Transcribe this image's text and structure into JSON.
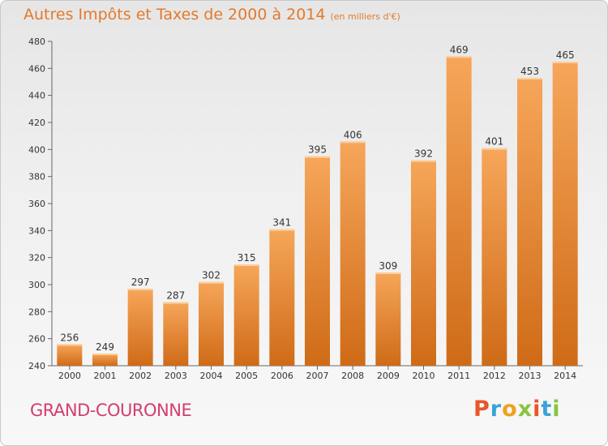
{
  "header": {
    "title": "Autres Impôts et Taxes de 2000 à 2014",
    "unit": "(en milliers d'€)"
  },
  "commune": "GRAND-COURONNE",
  "logo": {
    "text": "Proxiti",
    "letter_colors": [
      "#e8562a",
      "#3aa3d8",
      "#f0a11c",
      "#8ac43f",
      "#e8562a",
      "#3aa3d8",
      "#8ac43f"
    ]
  },
  "colors": {
    "bar_light": "#f6a65a",
    "bar_dark": "#cf6b17",
    "title": "#e37a2c",
    "commune": "#d23e6e"
  },
  "chart_data": {
    "type": "bar",
    "title": "Autres Impôts et Taxes de 2000 à 2014",
    "subtitle": "(en milliers d'€)",
    "categories": [
      "2000",
      "2001",
      "2002",
      "2003",
      "2004",
      "2005",
      "2006",
      "2007",
      "2008",
      "2009",
      "2010",
      "2011",
      "2012",
      "2013",
      "2014"
    ],
    "values": [
      256,
      249,
      297,
      287,
      302,
      315,
      341,
      395,
      406,
      309,
      392,
      469,
      401,
      453,
      465
    ],
    "ylim": [
      240,
      480
    ],
    "yticks": [
      240,
      260,
      280,
      300,
      320,
      340,
      360,
      380,
      400,
      420,
      440,
      460,
      480
    ],
    "grid": false,
    "legend": "none"
  }
}
